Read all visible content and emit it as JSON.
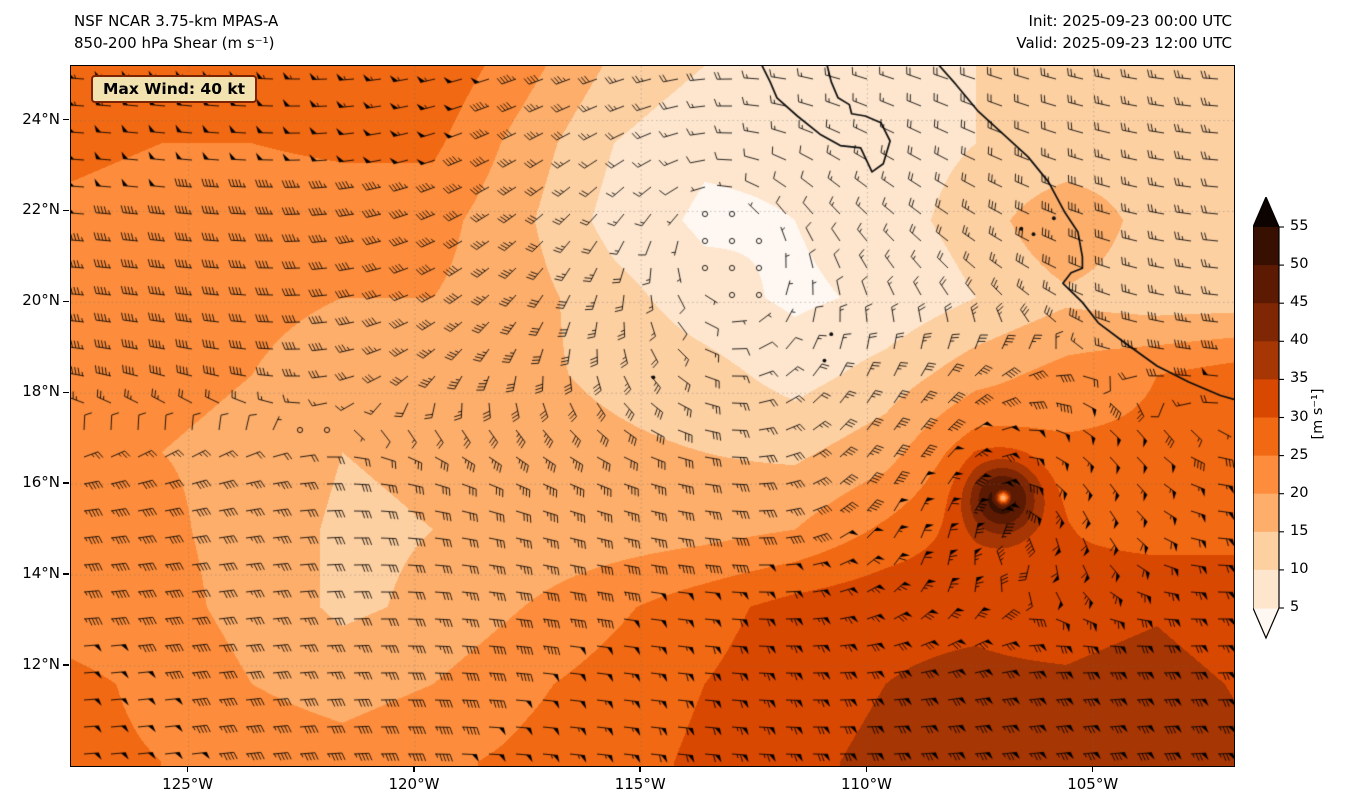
{
  "header": {
    "title": "NSF NCAR 3.75-km MPAS-A",
    "subtitle": "850-200 hPa Shear (m s⁻¹)",
    "init": "Init: 2025-09-23 00:00 UTC",
    "valid": "Valid: 2025-09-23 12:00 UTC"
  },
  "annotation": {
    "max_wind_label": "Max Wind: 40 kt"
  },
  "chart_data": {
    "type": "heatmap",
    "field": "850-200 hPa vertical wind shear magnitude with wind barbs",
    "units": "m s⁻¹",
    "title": "NSF NCAR 3.75-km MPAS-A",
    "subtitle": "850-200 hPa Shear (m s⁻¹)",
    "max_wind_kt": 40,
    "lon_range": [
      -127.6,
      -101.9
    ],
    "lat_range": [
      9.8,
      25.2
    ],
    "xticks": {
      "values": [
        -125,
        -120,
        -115,
        -110,
        -105
      ],
      "labels": [
        "125°W",
        "120°W",
        "115°W",
        "110°W",
        "105°W"
      ]
    },
    "yticks": {
      "values": [
        24,
        22,
        20,
        18,
        16,
        14,
        12
      ],
      "labels": [
        "24°N",
        "22°N",
        "20°N",
        "18°N",
        "16°N",
        "14°N",
        "12°N"
      ]
    },
    "colorbar": {
      "label": "[m s⁻¹]",
      "tick_values": [
        5,
        10,
        15,
        20,
        25,
        30,
        35,
        40,
        45,
        50,
        55
      ],
      "levels": [
        5,
        10,
        15,
        20,
        25,
        30,
        35,
        40,
        45,
        50,
        55
      ],
      "band_colors": [
        "#fee6ce",
        "#fdd0a2",
        "#fdae6b",
        "#fd8d3c",
        "#f16913",
        "#d94801",
        "#a63603",
        "#7f2704",
        "#5c1a02",
        "#371001"
      ],
      "under_color": "#fff8f2",
      "over_color": "#0d0300",
      "extend": "both"
    },
    "shear_grid": {
      "lons": [
        -127.6,
        -125.6,
        -123.6,
        -121.6,
        -119.6,
        -117.6,
        -115.6,
        -113.6,
        -111.6,
        -109.6,
        -107.6,
        -105.6,
        -103.6,
        -101.6
      ],
      "lats": [
        25.2,
        23.5,
        21.8,
        20.1,
        18.4,
        16.7,
        15.0,
        13.3,
        11.6,
        9.9
      ],
      "values_ms": [
        [
          28,
          27,
          27,
          27,
          29,
          22,
          14,
          10,
          8,
          8,
          10,
          12,
          14,
          10
        ],
        [
          26,
          25,
          25,
          26,
          26,
          18,
          10,
          6,
          6,
          8,
          10,
          10,
          12,
          12
        ],
        [
          24,
          23,
          22,
          22,
          22,
          16,
          8,
          4,
          5,
          8,
          12,
          20,
          12,
          10
        ],
        [
          23,
          22,
          21,
          20,
          20,
          17,
          12,
          7,
          4,
          6,
          10,
          14,
          12,
          12
        ],
        [
          22,
          21,
          20,
          18,
          18,
          16,
          14,
          12,
          8,
          12,
          18,
          22,
          25,
          28
        ],
        [
          22,
          20,
          19,
          15,
          16,
          17,
          16,
          15,
          14,
          18,
          28,
          26,
          26,
          26
        ],
        [
          22,
          21,
          18,
          14,
          15,
          16,
          17,
          18,
          20,
          26,
          32,
          30,
          28,
          30
        ],
        [
          23,
          22,
          18,
          14,
          16,
          20,
          24,
          28,
          32,
          34,
          34,
          32,
          34,
          30
        ],
        [
          26,
          24,
          20,
          18,
          20,
          24,
          27,
          30,
          33,
          35,
          36,
          36,
          38,
          34
        ],
        [
          26,
          25,
          23,
          22,
          24,
          26,
          28,
          31,
          34,
          36,
          38,
          38,
          40,
          36
        ]
      ]
    },
    "cyclone": {
      "lon": -107.0,
      "lat": 15.7,
      "peak_extra_ms": 24,
      "radius_deg": 0.55,
      "eye_radius_deg": 0.1,
      "eye_dip_ms": 38
    },
    "calm_center": {
      "lon": -113.2,
      "lat": 21.6
    },
    "coastlines": [
      [
        [
          -112.35,
          25.25
        ],
        [
          -112.15,
          24.85
        ],
        [
          -112.0,
          24.5
        ],
        [
          -111.55,
          24.1
        ],
        [
          -111.05,
          23.7
        ],
        [
          -110.6,
          23.45
        ],
        [
          -110.15,
          23.4
        ],
        [
          -109.9,
          22.87
        ],
        [
          -109.65,
          23.05
        ],
        [
          -109.5,
          23.55
        ],
        [
          -109.7,
          23.95
        ],
        [
          -110.05,
          24.1
        ],
        [
          -110.35,
          24.15
        ],
        [
          -110.4,
          24.35
        ],
        [
          -110.65,
          24.5
        ],
        [
          -110.8,
          24.85
        ],
        [
          -110.9,
          25.25
        ]
      ],
      [
        [
          -108.45,
          25.25
        ],
        [
          -108.05,
          24.8
        ],
        [
          -107.55,
          24.2
        ],
        [
          -107.0,
          23.7
        ],
        [
          -106.45,
          23.2
        ],
        [
          -106.0,
          22.65
        ],
        [
          -105.65,
          22.0
        ],
        [
          -105.35,
          21.55
        ],
        [
          -105.25,
          21.0
        ],
        [
          -105.25,
          20.75
        ],
        [
          -105.5,
          20.65
        ],
        [
          -105.68,
          20.42
        ],
        [
          -105.25,
          20.0
        ],
        [
          -104.9,
          19.55
        ],
        [
          -104.3,
          19.1
        ],
        [
          -103.6,
          18.6
        ],
        [
          -102.9,
          18.25
        ],
        [
          -102.2,
          17.95
        ],
        [
          -101.85,
          17.85
        ]
      ]
    ],
    "islands": [
      [
        -106.6,
        21.62
      ],
      [
        -106.33,
        21.5
      ],
      [
        -105.88,
        21.85
      ],
      [
        -110.95,
        18.72
      ],
      [
        -110.8,
        19.3
      ],
      [
        -114.73,
        18.35
      ]
    ],
    "grid_on": true,
    "legend_position": "right-colorbar"
  }
}
